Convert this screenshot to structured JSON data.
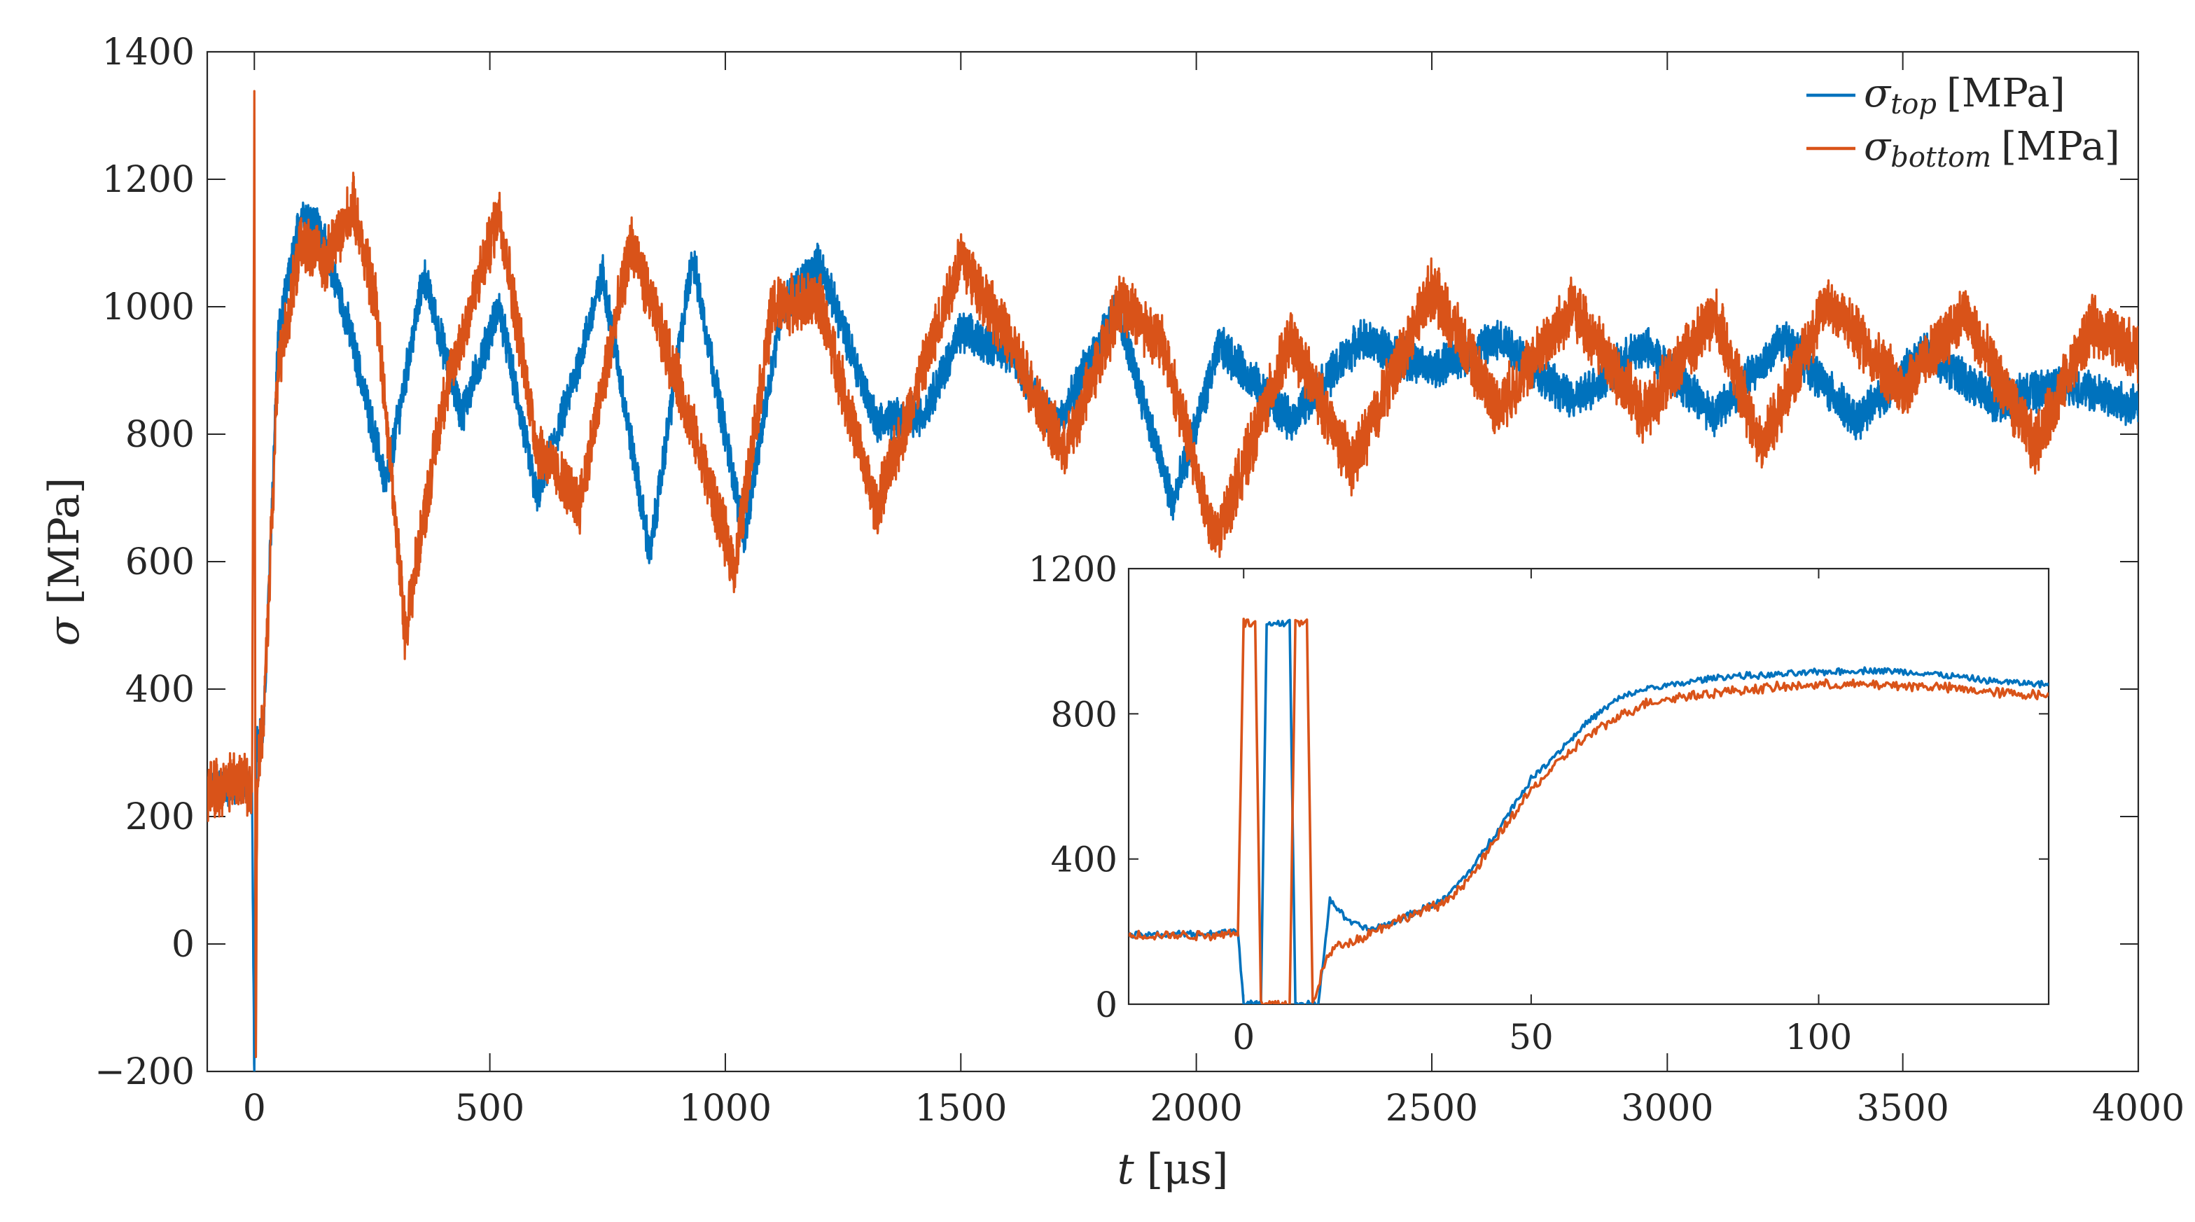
{
  "chart_data": [
    {
      "type": "line",
      "role": "main",
      "xlabel_symbol": "t",
      "xlabel_unit": "[μs]",
      "ylabel_symbol": "σ",
      "ylabel_unit": "[MPa]",
      "xlim": [
        -100,
        4000
      ],
      "ylim": [
        -200,
        1400
      ],
      "xticks": [
        "0",
        "500",
        "1000",
        "1500",
        "2000",
        "2500",
        "3000",
        "3500",
        "4000"
      ],
      "xtick_values": [
        0,
        500,
        1000,
        1500,
        2000,
        2500,
        3000,
        3500,
        4000
      ],
      "yticks": [
        "−200",
        "0",
        "200",
        "400",
        "600",
        "800",
        "1000",
        "1200",
        "1400"
      ],
      "ytick_values": [
        -200,
        0,
        200,
        400,
        600,
        800,
        1000,
        1200,
        1400
      ],
      "legend_location": "top-right",
      "series": [
        {
          "name": "σ_top [MPa]",
          "legend_symbol": "σ",
          "legend_sub": "top",
          "legend_unit": "[MPa]",
          "color": "#0072BD",
          "noise": 28,
          "x": [
            -100,
            -20,
            -5,
            0,
            2,
            5,
            10,
            20,
            50,
            100,
            140,
            200,
            280,
            360,
            440,
            520,
            600,
            680,
            740,
            840,
            930,
            1040,
            1120,
            1200,
            1320,
            1420,
            1500,
            1600,
            1700,
            1830,
            1950,
            2050,
            2200,
            2350,
            2500,
            2650,
            2800,
            2950,
            3100,
            3250,
            3400,
            3550,
            3700,
            3850,
            4000
          ],
          "y": [
            240,
            250,
            230,
            -210,
            200,
            320,
            320,
            340,
            950,
            1150,
            1120,
            970,
            720,
            1050,
            830,
            1000,
            700,
            890,
            1050,
            610,
            1080,
            640,
            1000,
            1070,
            820,
            830,
            960,
            930,
            810,
            1000,
            690,
            940,
            820,
            950,
            900,
            950,
            850,
            940,
            830,
            950,
            820,
            930,
            850,
            880,
            840
          ]
        },
        {
          "name": "σ_bottom [MPa]",
          "legend_symbol": "σ",
          "legend_sub": "bottom",
          "legend_unit": "[MPa]",
          "color": "#D95319",
          "noise": 40,
          "x": [
            -100,
            -20,
            -5,
            0,
            3,
            6,
            12,
            20,
            50,
            100,
            150,
            210,
            260,
            320,
            400,
            520,
            600,
            690,
            800,
            900,
            1020,
            1100,
            1200,
            1320,
            1420,
            1500,
            1600,
            1720,
            1840,
            1930,
            2040,
            2200,
            2330,
            2500,
            2640,
            2800,
            2950,
            3100,
            3200,
            3340,
            3500,
            3630,
            3780,
            3900,
            4000
          ],
          "y": [
            240,
            260,
            230,
            1320,
            -200,
            250,
            300,
            350,
            900,
            1100,
            1070,
            1160,
            1000,
            490,
            850,
            1150,
            780,
            690,
            1100,
            880,
            590,
            1000,
            1010,
            680,
            900,
            1080,
            950,
            770,
            1010,
            940,
            630,
            950,
            750,
            1030,
            840,
            1000,
            830,
            990,
            780,
            1010,
            870,
            990,
            780,
            970,
            930
          ]
        }
      ]
    },
    {
      "type": "line",
      "role": "inset",
      "xlim": [
        -20,
        140
      ],
      "ylim": [
        0,
        1200
      ],
      "xticks": [
        "0",
        "50",
        "100"
      ],
      "xtick_values": [
        0,
        50,
        100
      ],
      "yticks": [
        "0",
        "400",
        "800",
        "1200"
      ],
      "ytick_values": [
        0,
        400,
        800,
        1200
      ],
      "series": [
        {
          "name": "σ_top [MPa]",
          "color": "#0072BD",
          "noise": 8,
          "x": [
            -20,
            -5,
            -1,
            0,
            1,
            3,
            4,
            5,
            6,
            8,
            9,
            10,
            11,
            13,
            15,
            18,
            22,
            26,
            30,
            35,
            40,
            45,
            50,
            55,
            60,
            65,
            70,
            75,
            80,
            85,
            90,
            100,
            110,
            120,
            130,
            140
          ],
          "y": [
            190,
            195,
            205,
            0,
            0,
            0,
            1050,
            1050,
            1050,
            1050,
            0,
            0,
            0,
            0,
            290,
            230,
            205,
            225,
            255,
            290,
            380,
            500,
            620,
            700,
            780,
            840,
            870,
            880,
            895,
            905,
            905,
            915,
            920,
            910,
            890,
            880
          ]
        },
        {
          "name": "σ_bottom [MPa]",
          "color": "#D95319",
          "noise": 12,
          "x": [
            -20,
            -5,
            -1,
            0,
            1,
            2,
            3,
            4,
            5,
            6,
            7,
            8,
            9,
            10,
            11,
            12,
            14,
            16,
            20,
            25,
            30,
            35,
            40,
            45,
            50,
            55,
            60,
            65,
            70,
            75,
            80,
            90,
            100,
            110,
            120,
            130,
            140
          ],
          "y": [
            190,
            190,
            200,
            1050,
            1050,
            1050,
            0,
            0,
            0,
            0,
            0,
            0,
            1050,
            1050,
            1050,
            0,
            110,
            160,
            180,
            220,
            250,
            280,
            360,
            480,
            590,
            670,
            740,
            790,
            830,
            845,
            855,
            870,
            880,
            880,
            875,
            860,
            850
          ]
        }
      ]
    }
  ]
}
